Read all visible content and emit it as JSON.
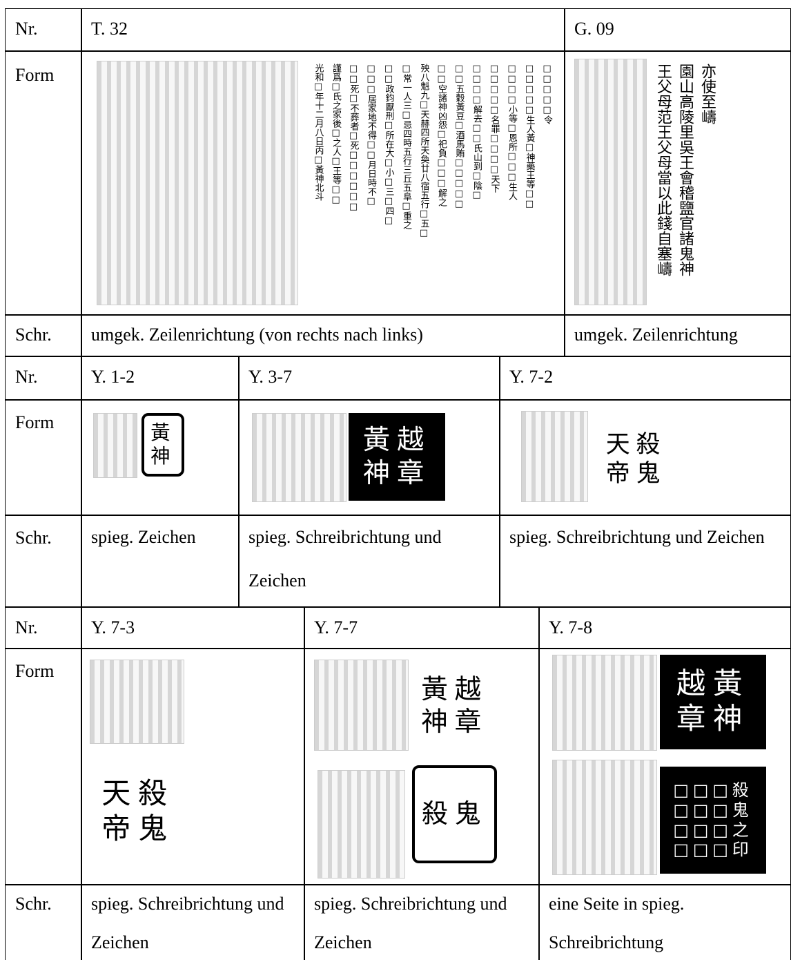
{
  "blocks": [
    {
      "labels": {
        "nr": "Nr.",
        "form": "Form",
        "schr": "Schr."
      },
      "nr": [
        "T. 32",
        "G. 09"
      ],
      "t32_transcription": [
        "□□□□□令",
        "□□□□□生人黃□神藥王等□□",
        "□□□□小等□恩所□□□生人",
        "□□□□□名罪□□□□天下",
        "□□□□解去□□氏山到□陰□",
        "□□五穀黃豆□酒馬賄□□□□□",
        "□□空諸神凶怨□祀負□□□解之",
        "殃八魁九□天赫四所天奐廿八宿五行□五□",
        "□常一人三□忌四時五行三丘五阜□重之",
        "□□政鈞厭刑□所在大□小□三□四□",
        "□□□居家地不得□□月日時不□",
        "□□死□不葬者□死□□□□□□",
        "謹爲□氏之家後□之人□王等□□",
        "光和□年十二月八日丙□黃神北斗"
      ],
      "g09_transcription": [
        "亦使至嶹",
        "園山高陵里吳王會稽鹽官諸鬼神",
        "王父母范王父母當以此錢自塞嶹"
      ],
      "schr": [
        "umgek. Zeilenrichtung (von rechts nach links)",
        "umgek. Zeilenrichtung"
      ]
    },
    {
      "labels": {
        "nr": "Nr.",
        "form": "Form",
        "schr": "Schr."
      },
      "nr": [
        "Y. 1-2",
        "Y. 3-7",
        "Y. 7-2"
      ],
      "seals": [
        [
          {
            "style": "outline",
            "rows": [
              "黃",
              "神"
            ]
          }
        ],
        [
          {
            "style": "black",
            "rows": [
              "黃越",
              "神章"
            ]
          }
        ],
        [
          {
            "style": "plain",
            "rows": [
              "天殺",
              "帝鬼"
            ]
          }
        ]
      ],
      "schr": [
        "spieg. Zeichen",
        "spieg. Schreibrichtung und Zeichen",
        "spieg. Schreibrichtung und Zeichen"
      ]
    },
    {
      "labels": {
        "nr": "Nr.",
        "form": "Form",
        "schr": "Schr."
      },
      "nr": [
        "Y. 7-3",
        "Y. 7-7",
        "Y. 7-8"
      ],
      "seals": [
        [
          {
            "style": "plain",
            "rows": [
              "天殺",
              "帝鬼"
            ]
          }
        ],
        [
          {
            "style": "plain",
            "rows": [
              "黃越",
              "神章"
            ]
          },
          {
            "style": "outline",
            "rows": [
              "殺鬼"
            ]
          }
        ],
        [
          {
            "style": "black",
            "rows": [
              "越黃",
              "章神"
            ]
          },
          {
            "style": "black",
            "rows": [
              "□□□殺",
              "□□□鬼",
              "□□□之",
              "□□□印"
            ]
          }
        ]
      ],
      "schr": [
        "spieg. Schreibrichtung und Zeichen",
        "spieg. Schreibrichtung und Zeichen",
        "eine Seite in spieg. Schreibrichtung"
      ]
    }
  ]
}
